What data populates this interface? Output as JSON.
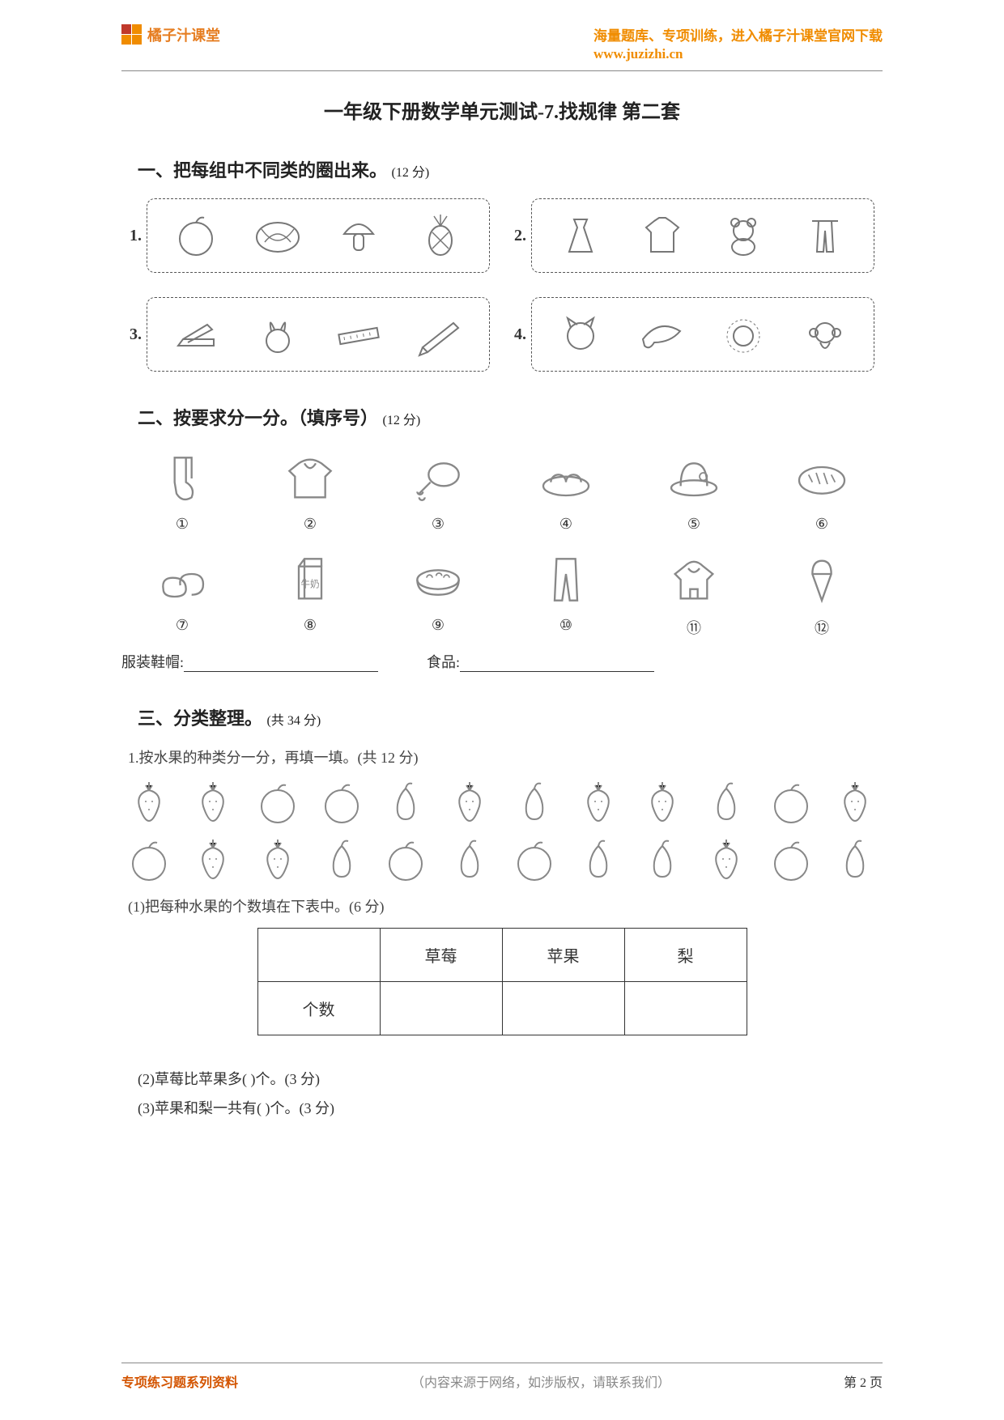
{
  "header": {
    "brand": "橘子汁课堂",
    "tagline": "海量题库、专项训练，进入橘子汁课堂官网下载",
    "url": "www.juzizhi.cn"
  },
  "title": "一年级下册数学单元测试-7.找规律  第二套",
  "s1": {
    "head": "一、把每组中不同类的圈出来。",
    "points": "(12 分)",
    "groups": [
      {
        "num": "1.",
        "items": [
          "apple",
          "watermelon",
          "mushroom",
          "pineapple"
        ]
      },
      {
        "num": "2.",
        "items": [
          "dress",
          "shirt",
          "teddy-bear",
          "pants-hanger"
        ]
      },
      {
        "num": "3.",
        "items": [
          "stapler",
          "rabbit",
          "ruler",
          "pencil"
        ]
      },
      {
        "num": "4.",
        "items": [
          "cat",
          "dolphin",
          "lion",
          "monkey"
        ]
      }
    ]
  },
  "s2": {
    "head": "二、按要求分一分。（填序号）",
    "points": "(12 分)",
    "items": [
      {
        "idx": "①",
        "name": "socks"
      },
      {
        "idx": "②",
        "name": "blouse"
      },
      {
        "idx": "③",
        "name": "drumstick"
      },
      {
        "idx": "④",
        "name": "dumplings"
      },
      {
        "idx": "⑤",
        "name": "hat"
      },
      {
        "idx": "⑥",
        "name": "bread"
      },
      {
        "idx": "⑦",
        "name": "sandals"
      },
      {
        "idx": "⑧",
        "name": "milk-box"
      },
      {
        "idx": "⑨",
        "name": "hotpot"
      },
      {
        "idx": "⑩",
        "name": "trousers"
      },
      {
        "idx": "⑪",
        "name": "hoodie"
      },
      {
        "idx": "⑫",
        "name": "ice-cream"
      }
    ],
    "label_clothes": "服装鞋帽:",
    "label_food": "食品:"
  },
  "s3": {
    "head": "三、分类整理。",
    "points": "(共 34 分)",
    "q1_intro": "1.按水果的种类分一分，再填一填。(共 12 分)",
    "fruit_rows": [
      [
        "strawberry",
        "strawberry",
        "apple",
        "apple",
        "pear",
        "strawberry",
        "pear",
        "strawberry",
        "strawberry",
        "pear",
        "apple",
        "strawberry"
      ],
      [
        "apple",
        "strawberry",
        "strawberry",
        "pear",
        "apple",
        "pear",
        "apple",
        "pear",
        "pear",
        "strawberry",
        "apple",
        "pear"
      ]
    ],
    "q1_sub1": "(1)把每种水果的个数填在下表中。(6 分)",
    "table": {
      "head_blank": "",
      "cols": [
        "草莓",
        "苹果",
        "梨"
      ],
      "row_label": "个数"
    },
    "q1_sub2": "(2)草莓比苹果多(            )个。(3 分)",
    "q1_sub3": "(3)苹果和梨一共有(            )个。(3 分)"
  },
  "footer": {
    "left": "专项练习题系列资料",
    "center": "（内容来源于网络，如涉版权，请联系我们）",
    "right_prefix": "第 ",
    "page": "2",
    "right_suffix": " 页"
  },
  "colors": {
    "accent": "#f08c00",
    "text": "#333333",
    "muted": "#888888",
    "border": "#333333"
  }
}
